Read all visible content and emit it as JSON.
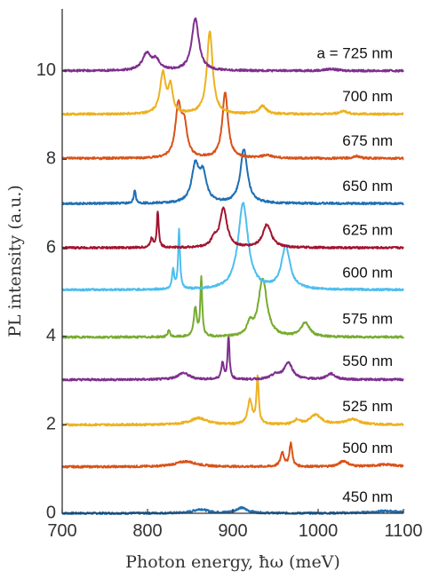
{
  "chart_data": {
    "type": "line",
    "xlabel": "Photon energy, ħω (meV)",
    "ylabel": "PL intensity (a.u.)",
    "xlim": [
      700,
      1100
    ],
    "ylim": [
      0,
      11.4
    ],
    "xticks": [
      {
        "value": 700,
        "label": "700"
      },
      {
        "value": 800,
        "label": "800"
      },
      {
        "value": 900,
        "label": "900"
      },
      {
        "value": 1000,
        "label": "1000"
      },
      {
        "value": 1100,
        "label": "1100"
      }
    ],
    "yticks": [
      {
        "value": 0,
        "label": "0"
      },
      {
        "value": 2,
        "label": "2"
      },
      {
        "value": 4,
        "label": "4"
      },
      {
        "value": 6,
        "label": "6"
      },
      {
        "value": 8,
        "label": "8"
      },
      {
        "value": 10,
        "label": "10"
      }
    ],
    "grid": false,
    "series": [
      {
        "name": "450 nm",
        "color": "#1f6fb5",
        "baseline": 0.0,
        "labelY": 0.35,
        "peaks": [
          [
            862,
            0.09,
            10
          ],
          [
            910,
            0.12,
            8
          ],
          [
            1080,
            0.05,
            20
          ]
        ]
      },
      {
        "name": "500 nm",
        "color": "#d95319",
        "baseline": 1.05,
        "labelY": 1.45,
        "peaks": [
          [
            845,
            0.12,
            15
          ],
          [
            958,
            0.32,
            2.5
          ],
          [
            968,
            0.52,
            2
          ],
          [
            1030,
            0.13,
            6
          ],
          [
            1080,
            0.05,
            15
          ]
        ]
      },
      {
        "name": "525 nm",
        "color": "#edb120",
        "baseline": 2.0,
        "labelY": 2.4,
        "peaks": [
          [
            860,
            0.15,
            12
          ],
          [
            920,
            0.55,
            3
          ],
          [
            929,
            1.05,
            1.6
          ],
          [
            975,
            0.1,
            4
          ],
          [
            997,
            0.22,
            8
          ],
          [
            1040,
            0.12,
            10
          ]
        ]
      },
      {
        "name": "550 nm",
        "color": "#7e2f8e",
        "baseline": 3.02,
        "labelY": 3.42,
        "peaks": [
          [
            842,
            0.15,
            8
          ],
          [
            888,
            0.38,
            1.8
          ],
          [
            895,
            0.97,
            1.3
          ],
          [
            950,
            0.1,
            6
          ],
          [
            965,
            0.38,
            6
          ],
          [
            1015,
            0.13,
            6
          ]
        ]
      },
      {
        "name": "575 nm",
        "color": "#77ac30",
        "baseline": 3.98,
        "labelY": 4.38,
        "peaks": [
          [
            825,
            0.16,
            1.5
          ],
          [
            856,
            0.65,
            2
          ],
          [
            863,
            1.32,
            1.3
          ],
          [
            920,
            0.25,
            4
          ],
          [
            935,
            1.32,
            6
          ],
          [
            985,
            0.32,
            6
          ]
        ]
      },
      {
        "name": "600 nm",
        "color": "#4dbeee",
        "baseline": 5.05,
        "labelY": 5.42,
        "peaks": [
          [
            830,
            0.42,
            1.6
          ],
          [
            837,
            1.32,
            1.3
          ],
          [
            912,
            1.95,
            7
          ],
          [
            962,
            0.97,
            6
          ]
        ]
      },
      {
        "name": "625 nm",
        "color": "#a2142f",
        "baseline": 6.0,
        "labelY": 6.38,
        "peaks": [
          [
            805,
            0.2,
            2
          ],
          [
            812,
            0.82,
            1.3
          ],
          [
            878,
            0.18,
            4
          ],
          [
            889,
            0.88,
            5
          ],
          [
            940,
            0.52,
            6
          ]
        ]
      },
      {
        "name": "650 nm",
        "color": "#1f6fb5",
        "baseline": 7.0,
        "labelY": 7.38,
        "peaks": [
          [
            785,
            0.28,
            1.5
          ],
          [
            856,
            0.82,
            5
          ],
          [
            865,
            0.62,
            5
          ],
          [
            913,
            1.22,
            5
          ]
        ]
      },
      {
        "name": "675 nm",
        "color": "#d95319",
        "baseline": 8.02,
        "labelY": 8.4,
        "peaks": [
          [
            836,
            1.12,
            4
          ],
          [
            843,
            0.72,
            4
          ],
          [
            891,
            1.48,
            4
          ],
          [
            940,
            0.06,
            8
          ],
          [
            1045,
            0.05,
            5
          ]
        ]
      },
      {
        "name": "700 nm",
        "color": "#edb120",
        "baseline": 9.02,
        "labelY": 9.4,
        "peaks": [
          [
            818,
            0.92,
            4
          ],
          [
            827,
            0.58,
            3
          ],
          [
            873,
            1.88,
            4
          ],
          [
            935,
            0.18,
            5
          ],
          [
            1030,
            0.07,
            5
          ]
        ]
      },
      {
        "name": "a = 725 nm",
        "color": "#7e2f8e",
        "baseline": 10.0,
        "labelY": 10.38,
        "peaks": [
          [
            799,
            0.38,
            6
          ],
          [
            810,
            0.22,
            5
          ],
          [
            856,
            1.18,
            5
          ],
          [
            1015,
            0.04,
            8
          ]
        ]
      }
    ]
  }
}
